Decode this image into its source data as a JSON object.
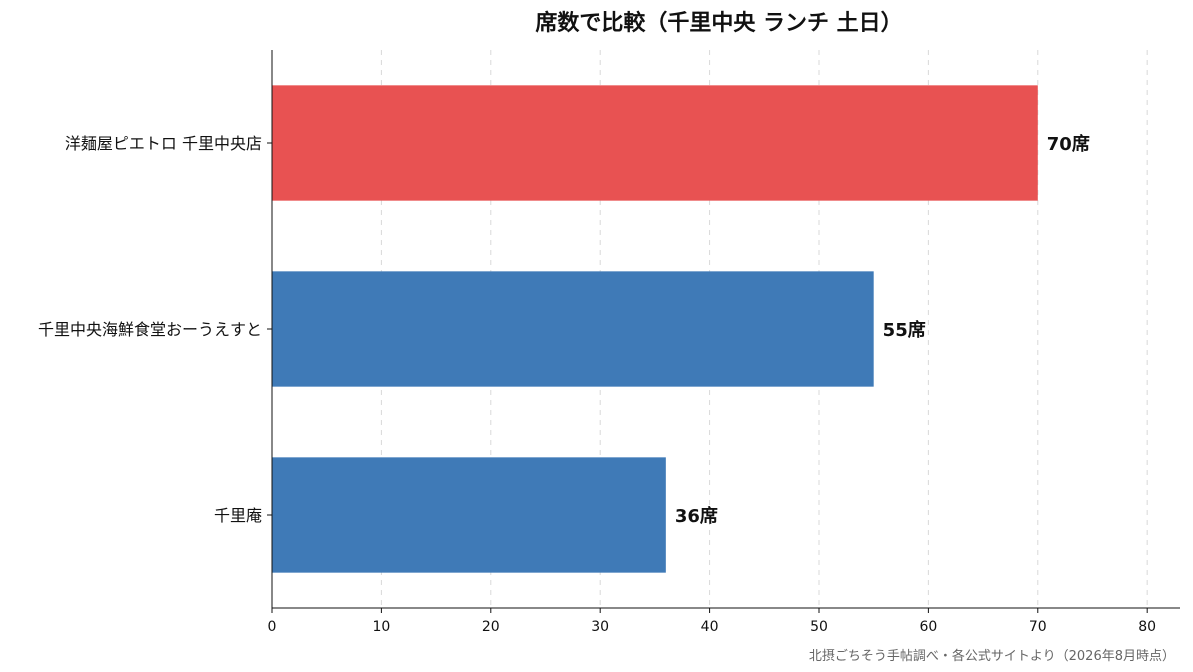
{
  "chart_data": {
    "type": "bar",
    "orientation": "horizontal",
    "title": "席数で比較（千里中央 ランチ 土日）",
    "categories": [
      "洋麺屋ピエトロ 千里中央店",
      "千里中央海鮮食堂おーうえすと",
      "千里庵"
    ],
    "values": [
      70,
      55,
      36
    ],
    "value_labels": [
      "70席",
      "55席",
      "36席"
    ],
    "bar_colors": [
      "#e85252",
      "#3f7ab7",
      "#3f7ab7"
    ],
    "xlim": [
      0,
      83
    ],
    "x_ticks": [
      0,
      10,
      20,
      30,
      40,
      50,
      60,
      70,
      80
    ],
    "x_tick_labels": [
      "0",
      "10",
      "20",
      "30",
      "40",
      "50",
      "60",
      "70",
      "80"
    ],
    "grid": "vertical-dashed",
    "xlabel": "",
    "ylabel": ""
  },
  "source_note": "北摂ごちそう手帖調べ・各公式サイトより（2026年8月時点）"
}
